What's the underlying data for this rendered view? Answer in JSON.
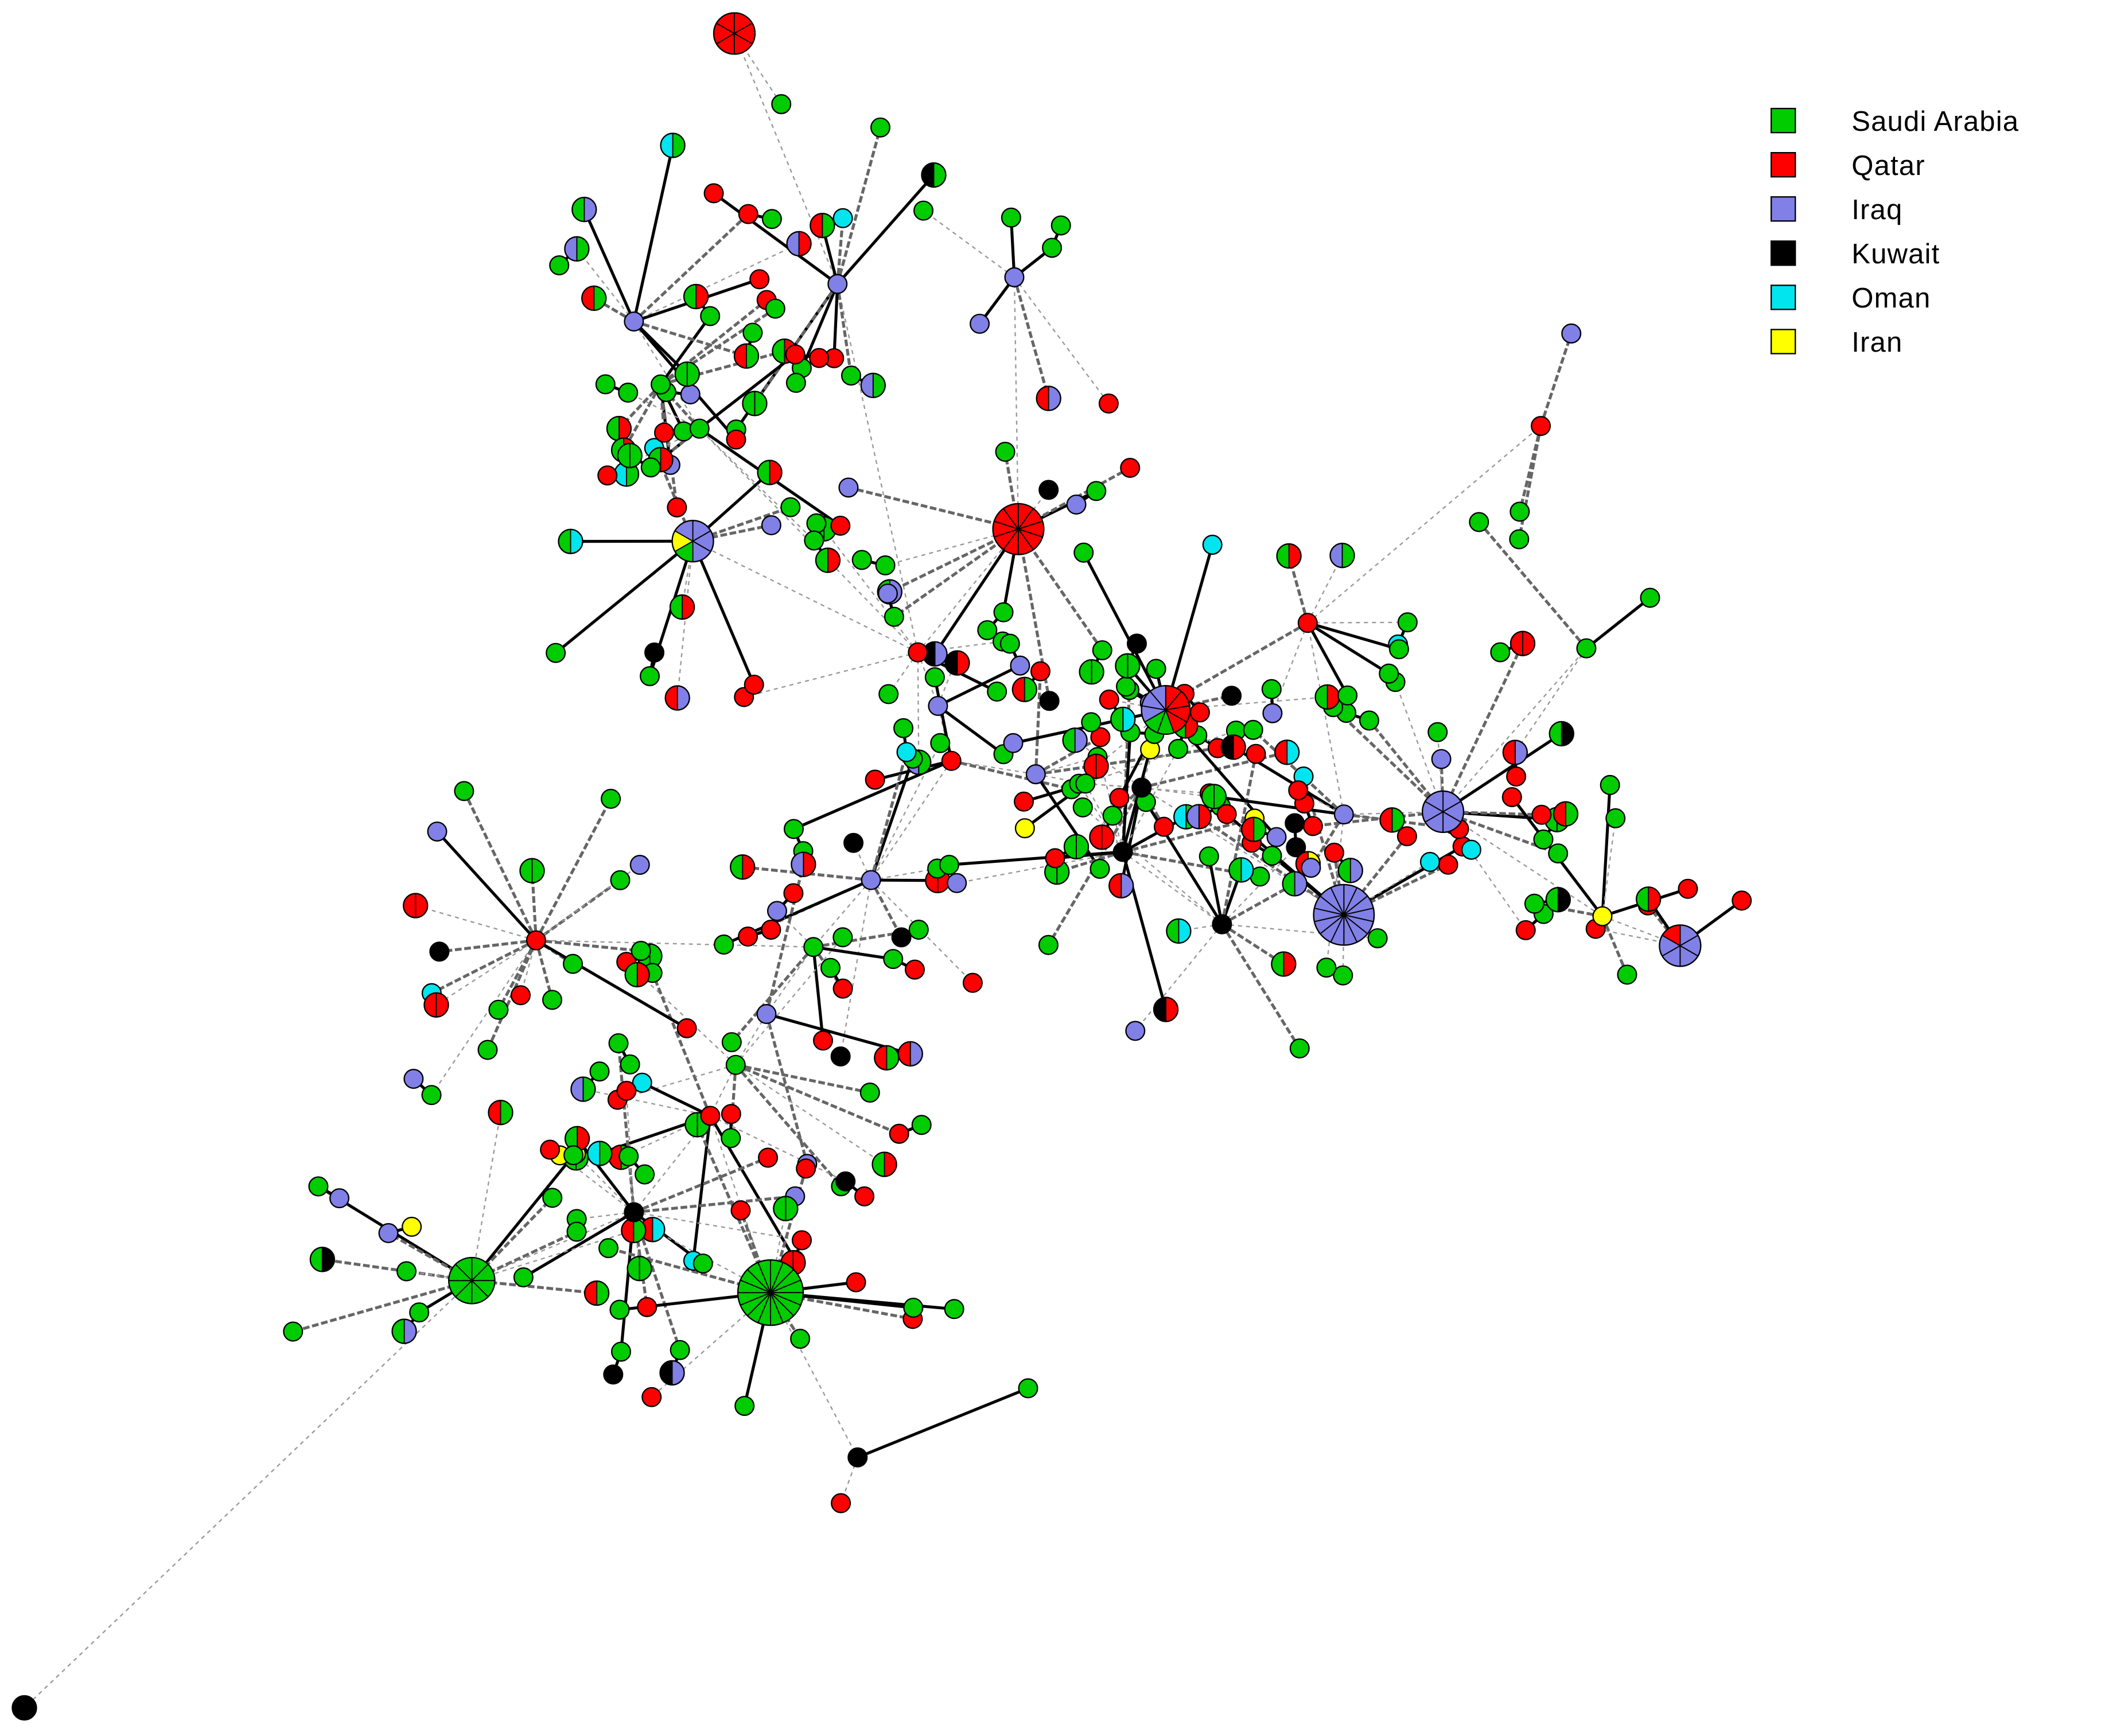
{
  "legend": {
    "items": [
      {
        "label": "Saudi Arabia",
        "color": "#00cc00"
      },
      {
        "label": "Qatar",
        "color": "#ff0000"
      },
      {
        "label": "Iraq",
        "color": "#8080e6"
      },
      {
        "label": "Kuwait",
        "color": "#000000"
      },
      {
        "label": "Oman",
        "color": "#00e5ee"
      },
      {
        "label": "Iran",
        "color": "#ffff00"
      }
    ]
  }
}
